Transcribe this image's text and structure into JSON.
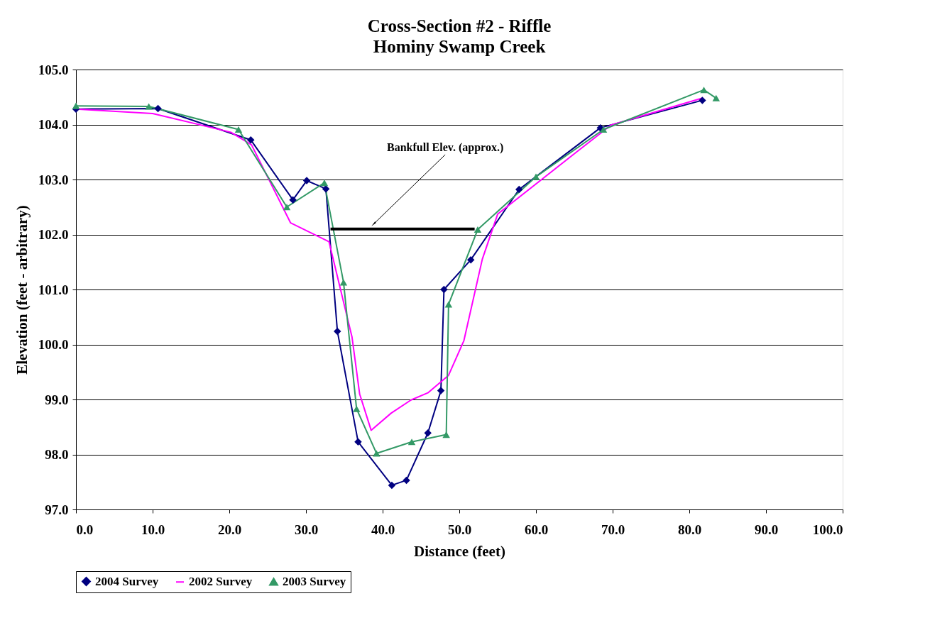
{
  "chart_data": {
    "type": "line",
    "title": "Cross-Section #2 - Riffle",
    "subtitle": "Hominy Swamp Creek",
    "xlabel": "Distance (feet)",
    "ylabel": "Elevation (feet - arbitrary)",
    "xlim": [
      0,
      100
    ],
    "xticks": [
      {
        "value": 0,
        "label": "0.0"
      },
      {
        "value": 10,
        "label": "10.0"
      },
      {
        "value": 20,
        "label": "20.0"
      },
      {
        "value": 30,
        "label": "30.0"
      },
      {
        "value": 40,
        "label": "40.0"
      },
      {
        "value": 50,
        "label": "50.0"
      },
      {
        "value": 60,
        "label": "60.0"
      },
      {
        "value": 70,
        "label": "70.0"
      },
      {
        "value": 80,
        "label": "80.0"
      },
      {
        "value": 90,
        "label": "90.0"
      },
      {
        "value": 100,
        "label": "100.0"
      }
    ],
    "ylim": [
      97,
      105
    ],
    "yticks": [
      {
        "value": 97,
        "label": "97.0"
      },
      {
        "value": 98,
        "label": "98.0"
      },
      {
        "value": 99,
        "label": "99.0"
      },
      {
        "value": 100,
        "label": "100.0"
      },
      {
        "value": 101,
        "label": "101.0"
      },
      {
        "value": 102,
        "label": "102.0"
      },
      {
        "value": 103,
        "label": "103.0"
      },
      {
        "value": 104,
        "label": "104.0"
      },
      {
        "value": 105,
        "label": "105.0"
      }
    ],
    "grid": "y",
    "legend": "bottom",
    "line_style": "solid",
    "series": [
      {
        "name": "2004 Survey",
        "color": "#000080",
        "marker": "diamond",
        "x": [
          0,
          10.7,
          22.8,
          28.3,
          30.1,
          32.6,
          34.1,
          36.8,
          41.2,
          43.1,
          45.9,
          47.6,
          48.0,
          51.5,
          57.8,
          68.4,
          81.7
        ],
        "values": [
          104.28,
          104.29,
          103.72,
          102.63,
          102.98,
          102.83,
          100.24,
          98.23,
          97.44,
          97.53,
          98.39,
          99.16,
          101.0,
          101.54,
          102.82,
          103.94,
          104.44
        ]
      },
      {
        "name": "2002 Survey",
        "color": "#ff00ff",
        "marker": "none",
        "x": [
          0,
          10.0,
          20.2,
          22.9,
          28.0,
          33.0,
          36.0,
          37.0,
          38.5,
          41.1,
          43.7,
          45.9,
          48.6,
          50.6,
          53.0,
          55.0,
          65.2,
          69.8,
          81.7
        ],
        "values": [
          104.28,
          104.2,
          103.86,
          103.63,
          102.21,
          101.87,
          100.14,
          99.1,
          98.44,
          98.75,
          98.99,
          99.12,
          99.44,
          100.07,
          101.55,
          102.37,
          103.49,
          103.99,
          104.48
        ]
      },
      {
        "name": "2003 Survey",
        "color": "#339966",
        "marker": "triangle",
        "x": [
          0,
          9.5,
          21.2,
          27.5,
          32.4,
          34.9,
          36.6,
          39.2,
          43.8,
          48.3,
          48.6,
          52.4,
          60.0,
          68.8,
          81.9,
          83.5
        ],
        "values": [
          104.34,
          104.33,
          103.91,
          102.5,
          102.94,
          101.13,
          98.83,
          98.02,
          98.23,
          98.36,
          100.73,
          102.09,
          103.05,
          103.91,
          104.63,
          104.48
        ]
      },
      {
        "color": "#000000",
        "marker": "none",
        "x": [
          33.2,
          52.0
        ],
        "values": [
          102.1,
          102.1
        ]
      }
    ],
    "annotations": [
      {
        "text": "Bankfull Elev. (approx.)",
        "x": 38.9,
        "y": 102.2
      }
    ]
  }
}
